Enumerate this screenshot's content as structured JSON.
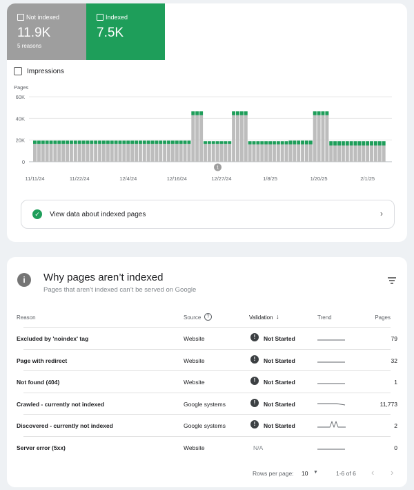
{
  "summary": {
    "not_indexed": {
      "label": "Not indexed",
      "value": "11.9K",
      "note": "5 reasons"
    },
    "indexed": {
      "label": "Indexed",
      "value": "7.5K"
    },
    "impressions": "Impressions"
  },
  "chart_data": {
    "type": "bar",
    "stacked": true,
    "y_label": "Pages",
    "ylim": [
      0,
      60000
    ],
    "yticks": [
      0,
      {
        "value": 20000,
        "label": "20K"
      },
      {
        "value": 40000,
        "label": "40K"
      },
      {
        "value": 60000,
        "label": "60K"
      }
    ],
    "grid": true,
    "annotations": [
      "1"
    ],
    "categories": [
      "11/11/24",
      null,
      null,
      null,
      null,
      null,
      null,
      null,
      null,
      null,
      null,
      "11/22/24",
      null,
      null,
      null,
      null,
      null,
      null,
      null,
      null,
      null,
      null,
      null,
      "12/4/24",
      null,
      null,
      null,
      null,
      null,
      null,
      null,
      null,
      null,
      null,
      null,
      "12/16/24",
      null,
      null,
      null,
      null,
      null,
      null,
      null,
      null,
      null,
      null,
      "12/27/24",
      null,
      null,
      null,
      null,
      null,
      null,
      null,
      null,
      null,
      null,
      null,
      "1/8/25",
      null,
      null,
      null,
      null,
      null,
      null,
      null,
      null,
      null,
      null,
      null,
      "1/20/25",
      null,
      null,
      null,
      null,
      null,
      null,
      null,
      null,
      null,
      null,
      null,
      "2/1/25",
      null,
      null,
      null,
      null
    ],
    "series": [
      {
        "color": "#bdbdbd",
        "values": [
          16500,
          16500,
          16500,
          16500,
          16500,
          16500,
          16500,
          16500,
          16500,
          16500,
          16500,
          16500,
          16500,
          16500,
          16500,
          16500,
          16500,
          16500,
          16500,
          16500,
          16500,
          16500,
          16500,
          16500,
          16500,
          16500,
          16500,
          16500,
          16500,
          16500,
          16500,
          16500,
          16500,
          16500,
          16500,
          16500,
          16500,
          16500,
          16500,
          43000,
          43000,
          43000,
          16500,
          16500,
          16500,
          16500,
          16500,
          16500,
          16500,
          43000,
          43000,
          43000,
          43000,
          16000,
          16000,
          16000,
          16000,
          16000,
          16000,
          16000,
          16000,
          16000,
          16000,
          16000,
          16000,
          16000,
          16000,
          16000,
          16000,
          43000,
          43000,
          43000,
          43000,
          15000,
          15000,
          15000,
          15000,
          15000,
          15000,
          15000,
          15000,
          15000,
          15000,
          15000,
          15000,
          15000,
          15000
        ]
      },
      {
        "color": "#1e9e5a",
        "values": [
          3000,
          3000,
          3000,
          3000,
          3000,
          3000,
          3000,
          3000,
          3000,
          3000,
          3000,
          3000,
          3000,
          3000,
          3000,
          3000,
          3000,
          3000,
          3000,
          3000,
          3000,
          3000,
          3000,
          3000,
          3000,
          3000,
          3000,
          3000,
          3000,
          3000,
          3000,
          3000,
          3000,
          3000,
          3000,
          3000,
          3000,
          3000,
          3000,
          3500,
          3500,
          3500,
          2500,
          2500,
          2500,
          2500,
          2500,
          2500,
          2500,
          3500,
          3500,
          3500,
          3500,
          3000,
          3000,
          3000,
          3000,
          3000,
          3000,
          3000,
          3000,
          3000,
          3000,
          3500,
          3500,
          3500,
          3500,
          3500,
          3500,
          3500,
          3500,
          3500,
          3500,
          4000,
          4000,
          4000,
          4000,
          4000,
          4000,
          4000,
          4000,
          4000,
          4000,
          4000,
          4000,
          4000,
          4000
        ]
      }
    ]
  },
  "link": "View data about indexed pages",
  "table": {
    "title": "Why pages aren’t indexed",
    "subtitle": "Pages that aren’t indexed can’t be served on Google",
    "headers": [
      "Reason",
      "Source",
      "Validation",
      "Trend",
      "Pages"
    ],
    "rows": [
      [
        "Excluded by 'noindex' tag",
        "Website",
        "Not Started",
        "79"
      ],
      [
        "Page with redirect",
        "Website",
        "Not Started",
        "32"
      ],
      [
        "Not found (404)",
        "Website",
        "Not Started",
        "1"
      ],
      [
        "Crawled - currently not indexed",
        "Google systems",
        "Not Started",
        "11,773"
      ],
      [
        "Discovered - currently not indexed",
        "Google systems",
        "Not Started",
        "2"
      ],
      [
        "Server error (5xx)",
        "Website",
        "N/A",
        "0"
      ]
    ],
    "footer": {
      "rows_per_page": "Rows per page:",
      "page_size": "10",
      "range": "1-6 of 6"
    }
  }
}
